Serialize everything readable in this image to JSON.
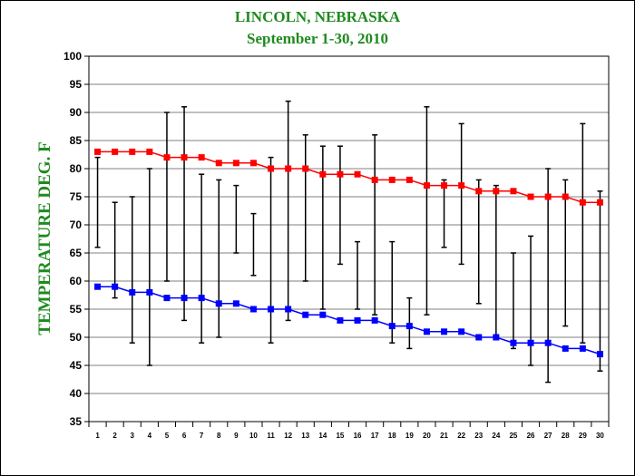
{
  "chart_data": {
    "type": "line",
    "title": "LINCOLN, NEBRASKA",
    "subtitle": "September 1-30, 2010",
    "ylabel": "TEMPERATURE DEG. F",
    "xlabel": "",
    "ylim": [
      35,
      100
    ],
    "y_ticks": [
      35,
      40,
      45,
      50,
      55,
      60,
      65,
      70,
      75,
      80,
      85,
      90,
      95,
      100
    ],
    "grid": true,
    "legend": "none",
    "x": [
      1,
      2,
      3,
      4,
      5,
      6,
      7,
      8,
      9,
      10,
      11,
      12,
      13,
      14,
      15,
      16,
      17,
      18,
      19,
      20,
      21,
      22,
      23,
      24,
      25,
      26,
      27,
      28,
      29,
      30
    ],
    "series": [
      {
        "color": "#ff0000",
        "values": [
          83,
          83,
          83,
          83,
          82,
          82,
          82,
          81,
          81,
          81,
          80,
          80,
          80,
          79,
          79,
          79,
          78,
          78,
          78,
          77,
          77,
          77,
          76,
          76,
          76,
          75,
          75,
          75,
          74,
          74
        ]
      },
      {
        "color": "#0000ff",
        "values": [
          59,
          59,
          58,
          58,
          57,
          57,
          57,
          56,
          56,
          55,
          55,
          55,
          54,
          54,
          53,
          53,
          53,
          52,
          52,
          51,
          51,
          51,
          50,
          50,
          49,
          49,
          49,
          48,
          48,
          47
        ]
      }
    ],
    "observed_ranges": {
      "color": "#000000",
      "high": [
        82,
        74,
        75,
        80,
        90,
        91,
        79,
        78,
        77,
        72,
        82,
        92,
        86,
        84,
        84,
        67,
        86,
        67,
        57,
        91,
        78,
        88,
        78,
        77,
        65,
        68,
        80,
        78,
        88,
        76
      ],
      "low": [
        66,
        57,
        49,
        45,
        60,
        53,
        49,
        50,
        65,
        61,
        49,
        53,
        60,
        55,
        63,
        55,
        54,
        49,
        48,
        54,
        66,
        63,
        56,
        50,
        48,
        45,
        42,
        52,
        49,
        44
      ]
    }
  }
}
